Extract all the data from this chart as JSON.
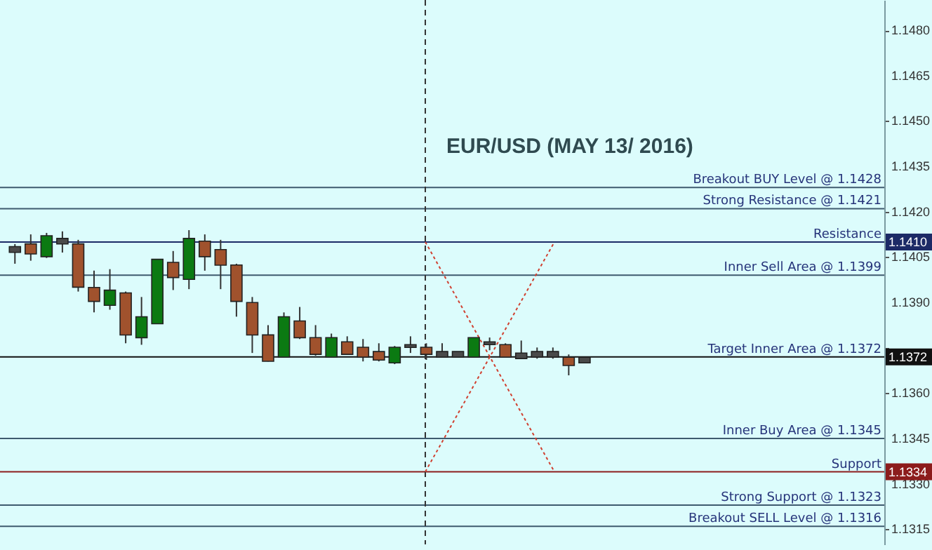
{
  "chart_data": {
    "type": "candlestick",
    "title": "EUR/USD (MAY 13/ 2016)",
    "categories": [
      null,
      null,
      null,
      null,
      null,
      null,
      null,
      null,
      null,
      null,
      null,
      null,
      null,
      null,
      null,
      null,
      null,
      null,
      null,
      null,
      null,
      null,
      null,
      null,
      null,
      null,
      null,
      null,
      null,
      null,
      null,
      null,
      null,
      null,
      null,
      null,
      null,
      null,
      null,
      null,
      null,
      null,
      null,
      null,
      null,
      null,
      null,
      null,
      null,
      null,
      null,
      null,
      null,
      null,
      null
    ],
    "ohlc": [
      [
        1.1407,
        1.14093,
        1.14028,
        1.1408
      ],
      [
        1.14089,
        1.14125,
        1.14038,
        1.14065
      ],
      [
        1.14056,
        1.1413,
        1.14047,
        1.14116
      ],
      [
        1.14107,
        1.14135,
        1.14065,
        1.14098
      ],
      [
        1.14089,
        1.14107,
        1.13936,
        1.13955
      ],
      [
        1.13945,
        1.14005,
        1.13867,
        1.13908
      ],
      [
        1.13895,
        1.1401,
        1.13876,
        1.13936
      ],
      [
        1.13927,
        1.13936,
        1.13765,
        1.13797
      ],
      [
        1.13788,
        1.13918,
        1.1376,
        1.13848
      ],
      [
        1.13834,
        1.14038,
        1.13834,
        1.14038
      ],
      [
        1.14028,
        1.1407,
        1.13941,
        1.13987
      ],
      [
        1.13981,
        1.14139,
        1.13944,
        1.14107
      ],
      [
        1.14098,
        1.14125,
        1.14005,
        1.14056
      ],
      [
        1.1407,
        1.14107,
        1.13944,
        1.14028
      ],
      [
        1.14019,
        1.14028,
        1.13853,
        1.13908
      ],
      [
        1.13895,
        1.13918,
        1.13733,
        1.13797
      ],
      [
        1.13788,
        1.13825,
        1.13705,
        1.1371
      ],
      [
        1.13724,
        1.13867,
        1.13719,
        1.13848
      ],
      [
        1.13834,
        1.13885,
        1.13779,
        1.13788
      ],
      [
        1.13779,
        1.13825,
        1.13724,
        1.13733
      ],
      [
        1.13724,
        1.13797,
        1.13724,
        1.13779
      ],
      [
        1.13765,
        1.13788,
        1.13733,
        1.13733
      ],
      [
        1.13747,
        1.13779,
        1.13705,
        1.13724
      ],
      [
        1.13733,
        1.13765,
        1.13705,
        1.13714
      ],
      [
        1.13705,
        1.13756,
        1.13696,
        1.13747
      ],
      [
        1.13756,
        1.13788,
        1.13733,
        1.13756
      ],
      [
        1.13747,
        1.13765,
        1.1371,
        1.13733
      ],
      [
        1.13733,
        1.13765,
        1.13719,
        1.13724
      ],
      [
        1.13733,
        1.13733,
        1.13719,
        1.13724
      ],
      [
        1.13724,
        1.13779,
        1.13719,
        1.13779
      ],
      [
        1.13765,
        1.13784,
        1.13742,
        1.13765
      ],
      [
        1.13756,
        1.13765,
        1.13724,
        1.13724
      ],
      [
        1.13728,
        1.13774,
        1.13719,
        1.13719
      ],
      [
        1.13733,
        1.13751,
        1.13714,
        1.13724
      ],
      [
        1.13733,
        1.13751,
        1.13714,
        1.13724
      ],
      [
        1.13714,
        1.13728,
        1.13659,
        1.13696
      ],
      [
        1.13705,
        1.13719,
        1.137,
        1.13714
      ],
      null,
      null,
      null,
      null,
      null,
      null,
      null,
      null,
      null,
      null,
      null,
      null,
      null,
      null,
      null,
      null,
      null,
      null
    ],
    "colors": [
      "#4a4a4a",
      "#a0522d",
      "#0b7a12",
      "#4a4a4a",
      "#a0522d",
      "#a0522d",
      "#0b7a12",
      "#a0522d",
      "#0b7a12",
      "#0b7a12",
      "#a0522d",
      "#0b7a12",
      "#a0522d",
      "#a0522d",
      "#a0522d",
      "#a0522d",
      "#a0522d",
      "#0b7a12",
      "#a0522d",
      "#a0522d",
      "#0b7a12",
      "#a0522d",
      "#a0522d",
      "#a0522d",
      "#0b7a12",
      "#4a4a4a",
      "#a0522d",
      "#4a4a4a",
      "#4a4a4a",
      "#0b7a12",
      "#4a4a4a",
      "#a0522d",
      "#4a4a4a",
      "#4a4a4a",
      "#4a4a4a",
      "#a0522d",
      "#4a4a4a",
      null,
      null,
      null,
      null,
      null,
      null,
      null,
      null,
      null,
      null,
      null,
      null,
      null,
      null,
      null,
      null,
      null,
      null
    ],
    "ylim": [
      1.131,
      1.149
    ],
    "yticks": [
      1.1315,
      {
        "value": 1.133,
        "label": "1.1330"
      },
      1.1345,
      {
        "value": 1.136,
        "label": "1.1360"
      },
      {
        "value": 1.1375,
        "label": null
      },
      {
        "value": 1.1334,
        "label": "1.1334"
      },
      {
        "value": 1.1372,
        "label": "1.1372"
      },
      {
        "value": 1.141,
        "label": "1.1410"
      },
      {
        "value": 1.139,
        "label": "1.1390"
      },
      1.1405,
      {
        "value": 1.142,
        "label": "1.1420"
      },
      1.1435,
      {
        "value": 1.145,
        "label": "1.1450"
      },
      1.1465,
      {
        "value": 1.148,
        "label": "1.1480"
      }
    ],
    "tick_labels": "y",
    "ref_lines": [
      {
        "axis": "y",
        "value": 1.1428,
        "label": "Breakout BUY Level @ 1.1428"
      },
      {
        "axis": "y",
        "value": 1.1421,
        "label": "Strong Resistance @  1.1421"
      },
      {
        "axis": "y",
        "value": 1.141,
        "label": "Resistance",
        "color": "#1c2a66"
      },
      {
        "axis": "y",
        "value": 1.1399,
        "label": "Inner Sell Area @ 1.1399"
      },
      {
        "axis": "y",
        "value": 1.1372,
        "label": "Target Inner Area @ 1.1372",
        "color": "#111111"
      },
      {
        "axis": "y",
        "value": 1.1345,
        "label": "Inner Buy Area  @ 1.1345"
      },
      {
        "axis": "y",
        "value": 1.1334,
        "label": "Support",
        "color": "#8c1c1c"
      },
      {
        "axis": "y",
        "value": 1.1323,
        "label": "Strong Support  @  1.1323"
      },
      {
        "axis": "y",
        "value": 1.1316,
        "label": "Breakout SELL Level  @ 1.1316"
      }
    ]
  }
}
